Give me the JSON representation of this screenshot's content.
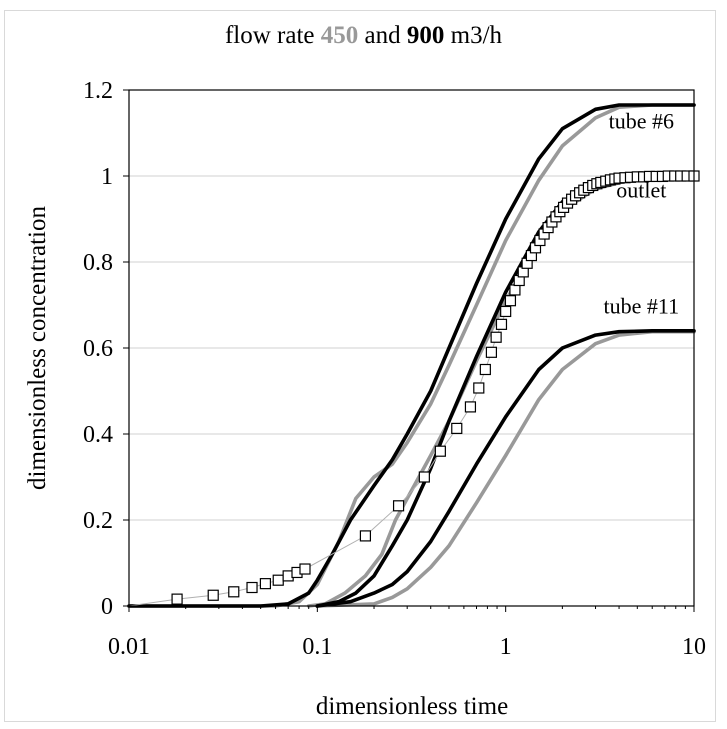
{
  "title": {
    "prefix": "flow rate",
    "value_gray": "450",
    "joiner": "and",
    "value_black": "900",
    "unit": "m3/h"
  },
  "chart_data": {
    "type": "line",
    "xlabel": "dimensionless time",
    "ylabel": "dimensionless concentration",
    "x_scale": "log",
    "xlim": [
      0.01,
      10
    ],
    "ylim": [
      0,
      1.2
    ],
    "x_ticks": [
      0.01,
      0.1,
      1,
      10
    ],
    "x_tick_labels": [
      "0.01",
      "0.1",
      "1",
      "10"
    ],
    "y_ticks": [
      0,
      0.2,
      0.4,
      0.6,
      0.8,
      1,
      1.2
    ],
    "y_tick_labels": [
      "0",
      "0.2",
      "0.4",
      "0.6",
      "0.8",
      "1",
      "1.2"
    ],
    "grid": "horizontal",
    "colors": {
      "q450": "#999999",
      "q900": "#000000",
      "markers": "#000000",
      "thin": "#b0b0b0"
    },
    "annotations": [
      {
        "text": "tube #6",
        "x": 5.0,
        "y": 1.11
      },
      {
        "text": "outlet",
        "x": 5.0,
        "y": 0.95
      },
      {
        "text": "tube #11",
        "x": 5.0,
        "y": 0.68
      }
    ],
    "series": [
      {
        "curve": "tube #6",
        "flow": "900",
        "color": "#000000",
        "x": [
          0.01,
          0.05,
          0.07,
          0.09,
          0.1,
          0.12,
          0.15,
          0.2,
          0.25,
          0.3,
          0.4,
          0.5,
          0.7,
          1,
          1.5,
          2,
          3,
          4,
          6,
          10
        ],
        "y": [
          0,
          0,
          0.005,
          0.03,
          0.06,
          0.12,
          0.2,
          0.28,
          0.34,
          0.4,
          0.5,
          0.6,
          0.75,
          0.9,
          1.04,
          1.11,
          1.155,
          1.165,
          1.165,
          1.165
        ]
      },
      {
        "curve": "tube #6",
        "flow": "450",
        "color": "#999999",
        "x": [
          0.01,
          0.06,
          0.08,
          0.1,
          0.13,
          0.16,
          0.2,
          0.25,
          0.3,
          0.4,
          0.5,
          0.7,
          1,
          1.5,
          2,
          3,
          4,
          6,
          10
        ],
        "y": [
          0,
          0,
          0.01,
          0.05,
          0.15,
          0.25,
          0.3,
          0.33,
          0.38,
          0.47,
          0.56,
          0.7,
          0.85,
          0.99,
          1.07,
          1.135,
          1.16,
          1.165,
          1.165
        ]
      },
      {
        "curve": "outlet",
        "flow": "900",
        "color": "#000000",
        "x": [
          0.1,
          0.13,
          0.16,
          0.2,
          0.25,
          0.3,
          0.4,
          0.5,
          0.7,
          1,
          1.5,
          2,
          3,
          5,
          10
        ],
        "y": [
          0,
          0.01,
          0.03,
          0.07,
          0.14,
          0.2,
          0.32,
          0.43,
          0.58,
          0.73,
          0.87,
          0.94,
          0.985,
          1.0,
          1.0
        ]
      },
      {
        "curve": "outlet",
        "flow": "450",
        "color": "#999999",
        "x": [
          0.09,
          0.11,
          0.14,
          0.18,
          0.22,
          0.26,
          0.3,
          0.4,
          0.5,
          0.7,
          1,
          1.5,
          2,
          3,
          5,
          10
        ],
        "y": [
          0,
          0.005,
          0.03,
          0.07,
          0.12,
          0.2,
          0.25,
          0.35,
          0.43,
          0.57,
          0.71,
          0.84,
          0.92,
          0.97,
          0.995,
          1.0
        ]
      },
      {
        "curve": "tube #11",
        "flow": "900",
        "color": "#000000",
        "x": [
          0.1,
          0.15,
          0.2,
          0.25,
          0.3,
          0.4,
          0.5,
          0.7,
          1,
          1.5,
          2,
          3,
          4,
          6,
          10
        ],
        "y": [
          0,
          0.01,
          0.03,
          0.05,
          0.08,
          0.15,
          0.22,
          0.33,
          0.44,
          0.55,
          0.6,
          0.63,
          0.638,
          0.64,
          0.64
        ]
      },
      {
        "curve": "tube #11",
        "flow": "450",
        "color": "#999999",
        "x": [
          0.1,
          0.2,
          0.25,
          0.3,
          0.4,
          0.5,
          0.7,
          1,
          1.5,
          2,
          3,
          4,
          6,
          10
        ],
        "y": [
          0,
          0.005,
          0.02,
          0.04,
          0.09,
          0.14,
          0.24,
          0.35,
          0.48,
          0.55,
          0.61,
          0.63,
          0.638,
          0.638
        ]
      },
      {
        "curve": "data",
        "marker": "square",
        "color": "#000000",
        "x": [
          0.018,
          0.028,
          0.036,
          0.045,
          0.053,
          0.062,
          0.07,
          0.078,
          0.086,
          0.18,
          0.27,
          0.37,
          0.45,
          0.55,
          0.65,
          0.72,
          0.78,
          0.84,
          0.89,
          0.95,
          1.0,
          1.06,
          1.12,
          1.18,
          1.24,
          1.3,
          1.37,
          1.44,
          1.52,
          1.6,
          1.68,
          1.76,
          1.85,
          1.94,
          2.03,
          2.13,
          2.24,
          2.35,
          2.47,
          2.6,
          2.75,
          2.9,
          3.05,
          3.2,
          3.4,
          3.6,
          3.8,
          4.0,
          4.3,
          4.6,
          5.0,
          5.4,
          5.8,
          6.3,
          6.8,
          7.3,
          7.9,
          8.5,
          9.2,
          10.0
        ],
        "y": [
          0.016,
          0.025,
          0.033,
          0.043,
          0.052,
          0.06,
          0.07,
          0.078,
          0.086,
          0.163,
          0.233,
          0.3,
          0.36,
          0.413,
          0.463,
          0.507,
          0.55,
          0.59,
          0.625,
          0.655,
          0.685,
          0.71,
          0.735,
          0.757,
          0.777,
          0.797,
          0.815,
          0.833,
          0.85,
          0.865,
          0.88,
          0.893,
          0.905,
          0.917,
          0.927,
          0.937,
          0.946,
          0.954,
          0.961,
          0.967,
          0.973,
          0.978,
          0.982,
          0.985,
          0.988,
          0.991,
          0.993,
          0.995,
          0.996,
          0.997,
          0.998,
          0.998,
          0.999,
          0.999,
          0.999,
          1.0,
          1.0,
          1.0,
          1.0,
          1.0
        ]
      }
    ]
  }
}
